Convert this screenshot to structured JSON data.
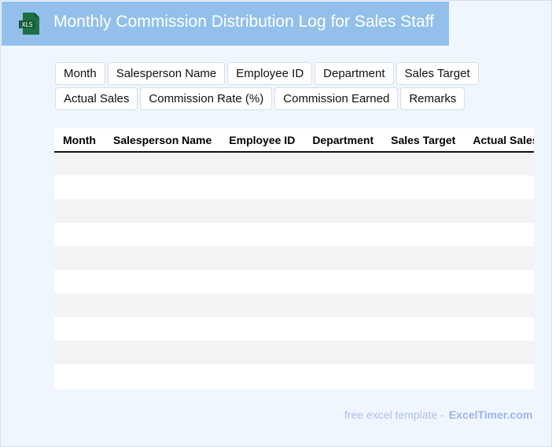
{
  "header": {
    "title": "Monthly Commission Distribution Log for Sales Staff",
    "icon": "xls-file-icon",
    "icon_label": "XLS"
  },
  "fields": [
    "Month",
    "Salesperson Name",
    "Employee ID",
    "Department",
    "Sales Target",
    "Actual Sales",
    "Commission Rate (%)",
    "Commission Earned",
    "Remarks"
  ],
  "table": {
    "columns": [
      "Month",
      "Salesperson Name",
      "Employee ID",
      "Department",
      "Sales Target",
      "Actual Sales",
      "Commission Rate (%)",
      "Commission Earned",
      "Remarks"
    ],
    "row_count": 10
  },
  "footer": {
    "text": "free excel template -",
    "brand": "ExcelTimer.com"
  },
  "colors": {
    "header_bg": "#92c0ea",
    "page_bg": "#f0f6ff",
    "icon_green": "#1d7044"
  }
}
